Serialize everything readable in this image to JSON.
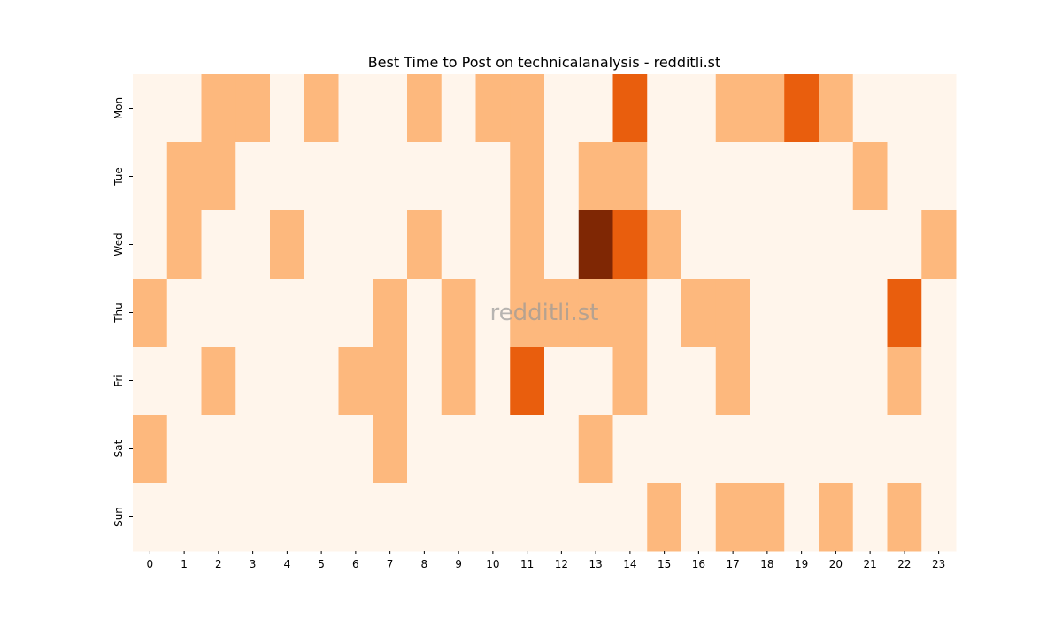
{
  "chart_data": {
    "type": "heatmap",
    "title": "Best Time to Post on technicalanalysis - redditli.st",
    "watermark": "redditli.st",
    "x": [
      0,
      1,
      2,
      3,
      4,
      5,
      6,
      7,
      8,
      9,
      10,
      11,
      12,
      13,
      14,
      15,
      16,
      17,
      18,
      19,
      20,
      21,
      22,
      23
    ],
    "y": [
      "Mon",
      "Tue",
      "Wed",
      "Thu",
      "Fri",
      "Sat",
      "Sun"
    ],
    "values": [
      [
        0,
        0,
        1,
        1,
        0,
        1,
        0,
        0,
        1,
        0,
        1,
        1,
        0,
        0,
        2,
        0,
        0,
        1,
        1,
        2,
        1,
        0,
        0,
        0
      ],
      [
        0,
        1,
        1,
        0,
        0,
        0,
        0,
        0,
        0,
        0,
        0,
        1,
        0,
        1,
        1,
        0,
        0,
        0,
        0,
        0,
        0,
        1,
        0,
        0
      ],
      [
        0,
        1,
        0,
        0,
        1,
        0,
        0,
        0,
        1,
        0,
        0,
        1,
        0,
        3,
        2,
        1,
        0,
        0,
        0,
        0,
        0,
        0,
        0,
        1
      ],
      [
        1,
        0,
        0,
        0,
        0,
        0,
        0,
        1,
        0,
        1,
        0,
        1,
        1,
        1,
        1,
        0,
        1,
        1,
        0,
        0,
        0,
        0,
        2,
        0
      ],
      [
        0,
        0,
        1,
        0,
        0,
        0,
        1,
        1,
        0,
        1,
        0,
        2,
        0,
        0,
        1,
        0,
        0,
        1,
        0,
        0,
        0,
        0,
        1,
        0
      ],
      [
        1,
        0,
        0,
        0,
        0,
        0,
        0,
        1,
        0,
        0,
        0,
        0,
        0,
        1,
        0,
        0,
        0,
        0,
        0,
        0,
        0,
        0,
        0,
        0
      ],
      [
        0,
        0,
        0,
        0,
        0,
        0,
        0,
        0,
        0,
        0,
        0,
        0,
        0,
        0,
        0,
        1,
        0,
        1,
        1,
        0,
        1,
        0,
        1,
        0
      ]
    ],
    "colorscale": [
      "#fff5eb",
      "#fdb87d",
      "#e95e0d",
      "#7f2704"
    ]
  }
}
